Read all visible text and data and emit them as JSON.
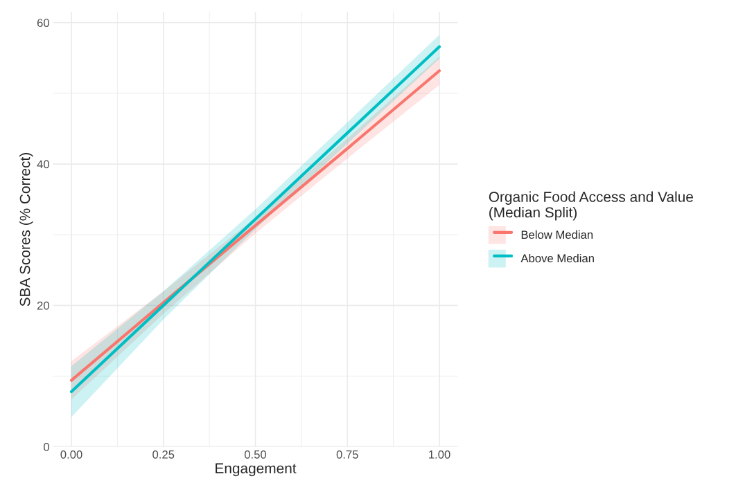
{
  "chart_data": {
    "type": "line",
    "xlabel": "Engagement",
    "ylabel": "SBA Scores (% Correct)",
    "legend_title": "Organic Food Access and Value\n(Median Split)",
    "x": [
      0,
      0.25,
      0.5,
      0.75,
      1
    ],
    "series": [
      {
        "name": "Below Median",
        "color": "#f8766d",
        "values": [
          9.4,
          20.4,
          31.3,
          42.2,
          53.2
        ],
        "lower": [
          6.7,
          18.8,
          30.2,
          40.8,
          51.2
        ],
        "upper": [
          12.1,
          22.0,
          32.4,
          43.6,
          55.2
        ]
      },
      {
        "name": "Above Median",
        "color": "#00bfc4",
        "values": [
          7.8,
          20.0,
          32.2,
          44.4,
          56.6
        ],
        "lower": [
          4.2,
          18.0,
          30.8,
          42.9,
          54.9
        ],
        "upper": [
          11.4,
          22.0,
          33.6,
          45.9,
          58.3
        ]
      }
    ],
    "xlim": [
      -0.05,
      1.05
    ],
    "ylim": [
      0,
      61.5
    ],
    "xticks": [
      {
        "value": 0,
        "label": "0.00"
      },
      {
        "value": 0.25,
        "label": "0.25"
      },
      {
        "value": 0.5,
        "label": "0.50"
      },
      {
        "value": 0.75,
        "label": "0.75"
      },
      {
        "value": 1,
        "label": "1.00"
      }
    ],
    "yticks": [
      0,
      20,
      40,
      60
    ],
    "grid": true,
    "legend": "right",
    "line_style": "solid",
    "marker": "none"
  }
}
